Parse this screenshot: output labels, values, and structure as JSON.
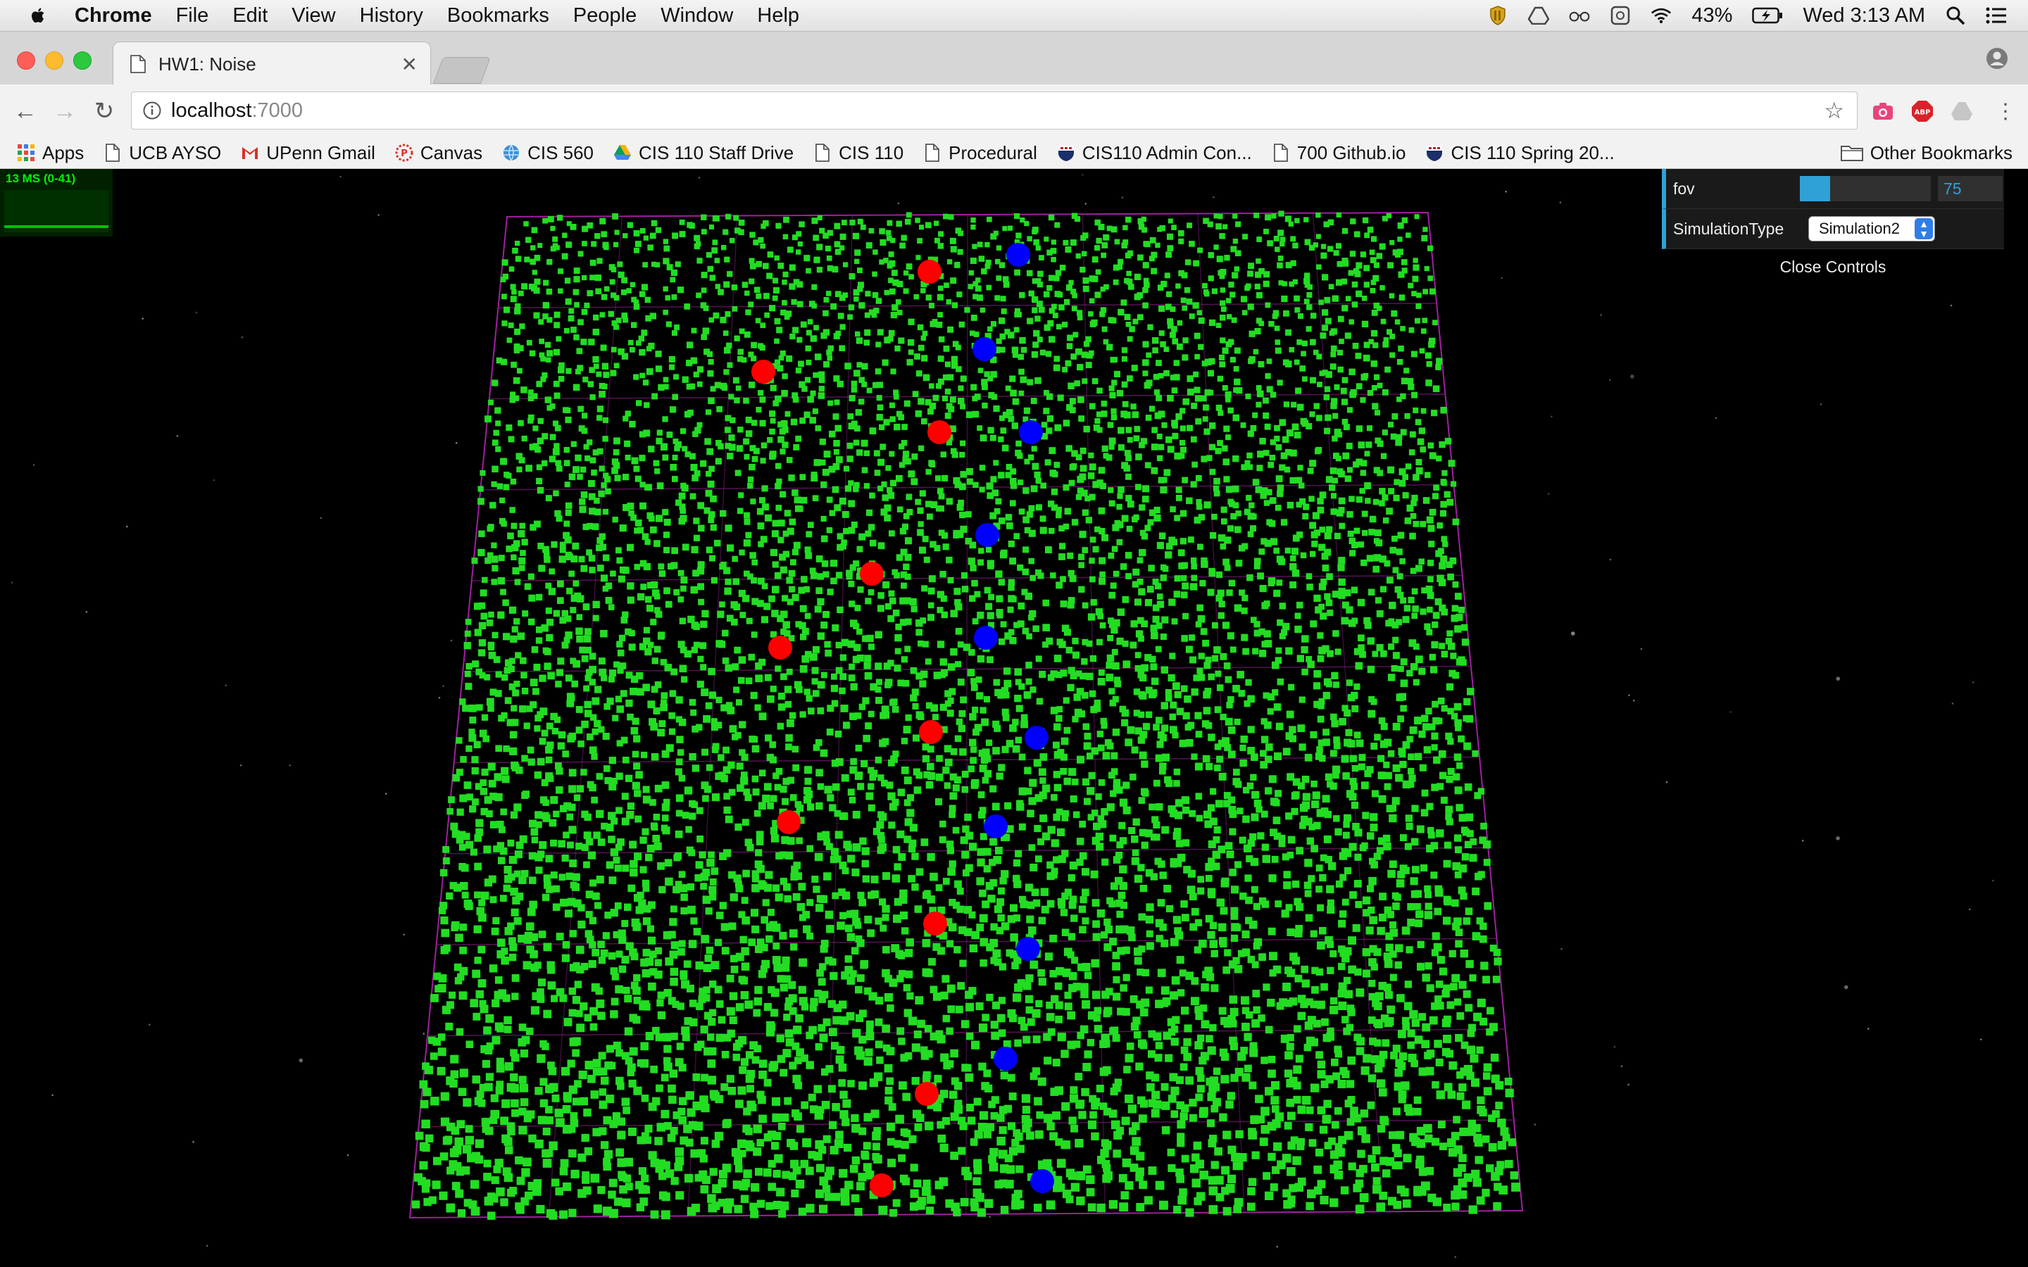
{
  "menubar": {
    "app_name": "Chrome",
    "items": [
      "File",
      "Edit",
      "View",
      "History",
      "Bookmarks",
      "People",
      "Window",
      "Help"
    ],
    "battery": "43%",
    "clock": "Wed 3:13 AM"
  },
  "tab": {
    "title": "HW1: Noise"
  },
  "address": {
    "host": "localhost",
    "port": ":7000"
  },
  "bookmarks": [
    {
      "label": "Apps",
      "icon": "apps-grid-icon"
    },
    {
      "label": "UCB AYSO",
      "icon": "page-icon"
    },
    {
      "label": "UPenn Gmail",
      "icon": "gmail-icon"
    },
    {
      "label": "Canvas",
      "icon": "canvas-icon"
    },
    {
      "label": "CIS 560",
      "icon": "globe-icon"
    },
    {
      "label": "CIS 110 Staff Drive",
      "icon": "drive-icon"
    },
    {
      "label": "CIS 110",
      "icon": "page-icon"
    },
    {
      "label": "Procedural",
      "icon": "page-icon"
    },
    {
      "label": "CIS110 Admin Con...",
      "icon": "penn-shield-icon"
    },
    {
      "label": "700 Github.io",
      "icon": "page-icon"
    },
    {
      "label": "CIS 110 Spring 20...",
      "icon": "penn-shield-icon"
    }
  ],
  "other_bookmarks": "Other Bookmarks",
  "stats": {
    "label": "13 MS (0-41)"
  },
  "gui": {
    "fov": {
      "label": "fov",
      "value": "75",
      "fraction": 0.23
    },
    "simulation": {
      "label": "SimulationType",
      "value": "Simulation2"
    },
    "close_label": "Close Controls"
  },
  "colors": {
    "particles": "#22dd22",
    "agent_red": "#ff0000",
    "agent_blue": "#0000ff",
    "grid_lines": "#a020a0",
    "gui_accent": "#2fa1d6"
  }
}
